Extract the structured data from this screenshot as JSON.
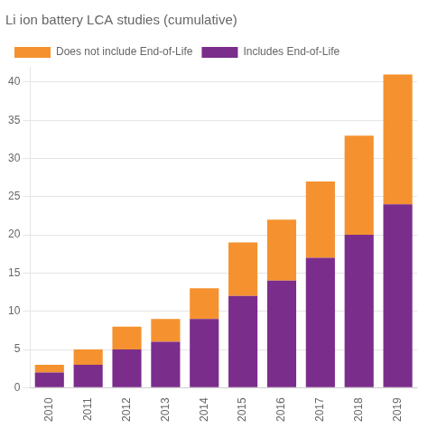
{
  "chart_data": {
    "type": "bar",
    "title": "Li ion battery LCA studies (cumulative)",
    "categories": [
      "2010",
      "2011",
      "2012",
      "2013",
      "2014",
      "2015",
      "2016",
      "2017",
      "2018",
      "2019"
    ],
    "series": [
      {
        "name": "Includes End-of-Life",
        "color": "#7B2D8B",
        "values": [
          2,
          3,
          5,
          6,
          9,
          12,
          14,
          17,
          20,
          24
        ]
      },
      {
        "name": "Does not include End-of-Life",
        "color": "#F5922F",
        "values": [
          1,
          2,
          3,
          3,
          4,
          7,
          8,
          10,
          13,
          17
        ]
      }
    ],
    "stacked": true,
    "ylim": [
      0,
      42
    ],
    "yticks": [
      0,
      5,
      10,
      15,
      20,
      25,
      30,
      35,
      40
    ],
    "grid": true,
    "legend": "upper left"
  }
}
